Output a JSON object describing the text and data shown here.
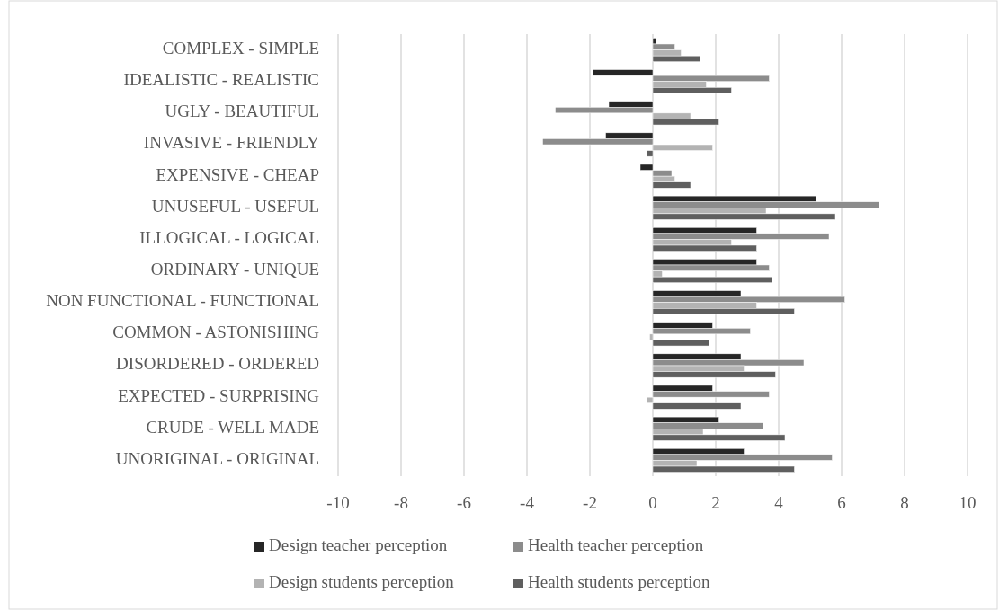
{
  "chart_data": {
    "type": "bar",
    "orientation": "horizontal",
    "categories": [
      "COMPLEX - SIMPLE",
      "IDEALISTIC - REALISTIC",
      "UGLY - BEAUTIFUL",
      "INVASIVE - FRIENDLY",
      "EXPENSIVE - CHEAP",
      "UNUSEFUL - USEFUL",
      "ILLOGICAL - LOGICAL",
      "ORDINARY - UNIQUE",
      "NON FUNCTIONAL - FUNCTIONAL",
      "COMMON - ASTONISHING",
      "DISORDERED - ORDERED",
      "EXPECTED - SURPRISING",
      "CRUDE - WELL MADE",
      "UNORIGINAL - ORIGINAL"
    ],
    "series": [
      {
        "name": "Design teacher perception",
        "color": "#262626",
        "values": [
          0.1,
          -1.9,
          -1.4,
          -1.5,
          -0.4,
          5.2,
          3.3,
          3.3,
          2.8,
          1.9,
          2.8,
          1.9,
          2.1,
          2.9
        ]
      },
      {
        "name": "Health teacher perception",
        "color": "#8c8c8c",
        "values": [
          0.7,
          3.7,
          -3.1,
          -3.5,
          0.6,
          7.2,
          5.6,
          3.7,
          6.1,
          3.1,
          4.8,
          3.7,
          3.5,
          5.7
        ]
      },
      {
        "name": "Design students perception",
        "color": "#b3b3b3",
        "values": [
          0.9,
          1.7,
          1.2,
          1.9,
          0.7,
          3.6,
          2.5,
          0.3,
          3.3,
          -0.1,
          2.9,
          -0.2,
          1.6,
          1.4
        ]
      },
      {
        "name": "Health students perception",
        "color": "#5f5f5f",
        "values": [
          1.5,
          2.5,
          2.1,
          -0.2,
          1.2,
          5.8,
          3.3,
          3.8,
          4.5,
          1.8,
          3.9,
          2.8,
          4.2,
          4.5
        ]
      }
    ],
    "xlim": [
      -10,
      10
    ],
    "xticks": [
      -10,
      -8,
      -6,
      -4,
      -2,
      0,
      2,
      4,
      6,
      8,
      10
    ],
    "grid": "x",
    "legend": "bottom"
  }
}
